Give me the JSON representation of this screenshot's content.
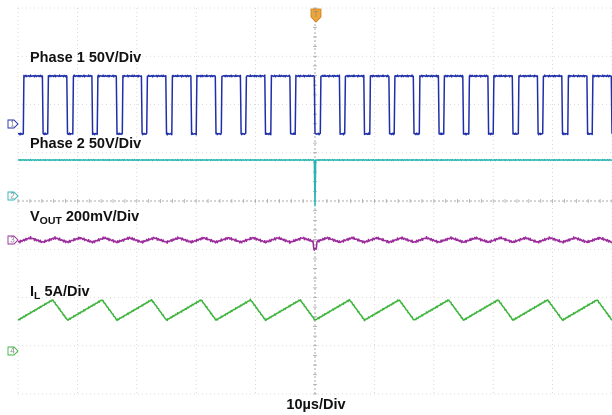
{
  "chart_data": {
    "type": "line",
    "grid": true,
    "time_per_division_label": "10µs/Div",
    "divisions": {
      "horizontal": 10,
      "vertical": 8
    },
    "trigger_marker": "T",
    "series": [
      {
        "key": "phase1",
        "label_parts": [
          {
            "text": "Phase 1 50V/Div",
            "sub": false
          }
        ],
        "color": "#1f2fa8",
        "shape": "square",
        "pulses_on_screen": 24,
        "duty_low": 0.22,
        "level_high_div": 0.0,
        "level_low_div": -1.2,
        "ground_marker": "1"
      },
      {
        "key": "phase2",
        "label_parts": [
          {
            "text": "Phase 2 50V/Div",
            "sub": false
          }
        ],
        "color": "#29b5b2",
        "shape": "flat",
        "level_div": 0.0,
        "trigger_glitch_div": -0.95,
        "ground_marker": "2"
      },
      {
        "key": "vout",
        "label_parts": [
          {
            "text": "V",
            "sub": false
          },
          {
            "text": "OUT",
            "sub": true
          },
          {
            "text": " 200mV/Div",
            "sub": false
          }
        ],
        "color": "#9b2a9b",
        "shape": "ripple",
        "cycles_on_screen": 24,
        "ripple_div": 0.09,
        "ground_marker": "3"
      },
      {
        "key": "il",
        "label_parts": [
          {
            "text": "I",
            "sub": false
          },
          {
            "text": "L",
            "sub": true
          },
          {
            "text": " 5A/Div",
            "sub": false
          }
        ],
        "color": "#3cb43c",
        "shape": "sawtooth",
        "cycles_on_screen": 12,
        "ripple_div": 0.42,
        "rise_fraction": 0.7,
        "ground_marker": "4"
      }
    ]
  }
}
